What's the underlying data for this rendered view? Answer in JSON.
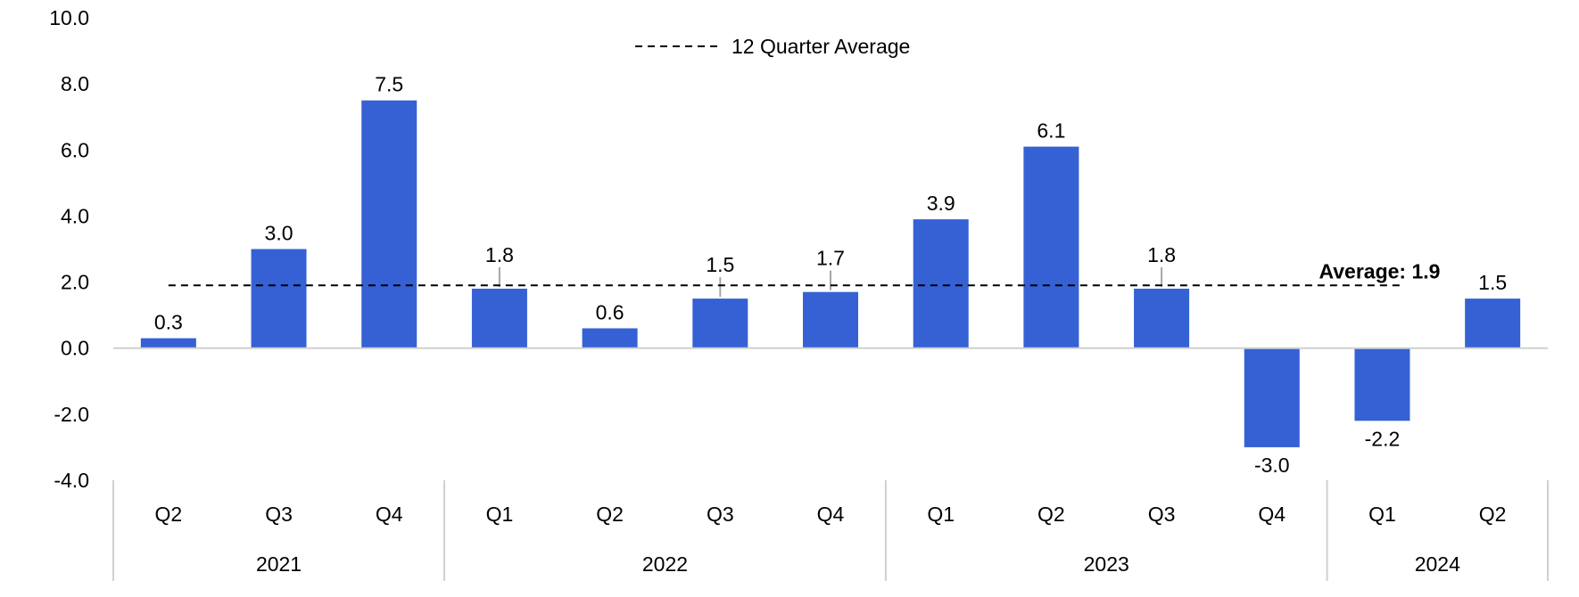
{
  "chart_data": {
    "type": "bar",
    "categories": [
      "Q2",
      "Q3",
      "Q4",
      "Q1",
      "Q2",
      "Q3",
      "Q4",
      "Q1",
      "Q2",
      "Q3",
      "Q4",
      "Q1",
      "Q2"
    ],
    "years": [
      {
        "label": "2021",
        "count": 3
      },
      {
        "label": "2022",
        "count": 4
      },
      {
        "label": "2023",
        "count": 4
      },
      {
        "label": "2024",
        "count": 2
      }
    ],
    "values": [
      0.3,
      3.0,
      7.5,
      1.8,
      0.6,
      1.5,
      1.7,
      3.9,
      6.1,
      1.8,
      -3.0,
      -2.2,
      1.5
    ],
    "value_labels": [
      "0.3",
      "3.0",
      "7.5",
      "1.8",
      "0.6",
      "1.5",
      "1.7",
      "3.9",
      "6.1",
      "1.8",
      "-3.0",
      "-2.2",
      "1.5"
    ],
    "average": 1.9,
    "average_label": "Average: 1.9",
    "legend": "12 Quarter Average",
    "ylim": [
      -4.0,
      10.0
    ],
    "yticks": [
      "10.0",
      "8.0",
      "6.0",
      "4.0",
      "2.0",
      "0.0",
      "-2.0",
      "-4.0"
    ],
    "ytick_values": [
      10,
      8,
      6,
      4,
      2,
      0,
      -2,
      -4
    ],
    "title": "",
    "xlabel": "",
    "ylabel": "",
    "bar_color": "#3561D4",
    "grid": false,
    "legend_position": "top-center"
  }
}
